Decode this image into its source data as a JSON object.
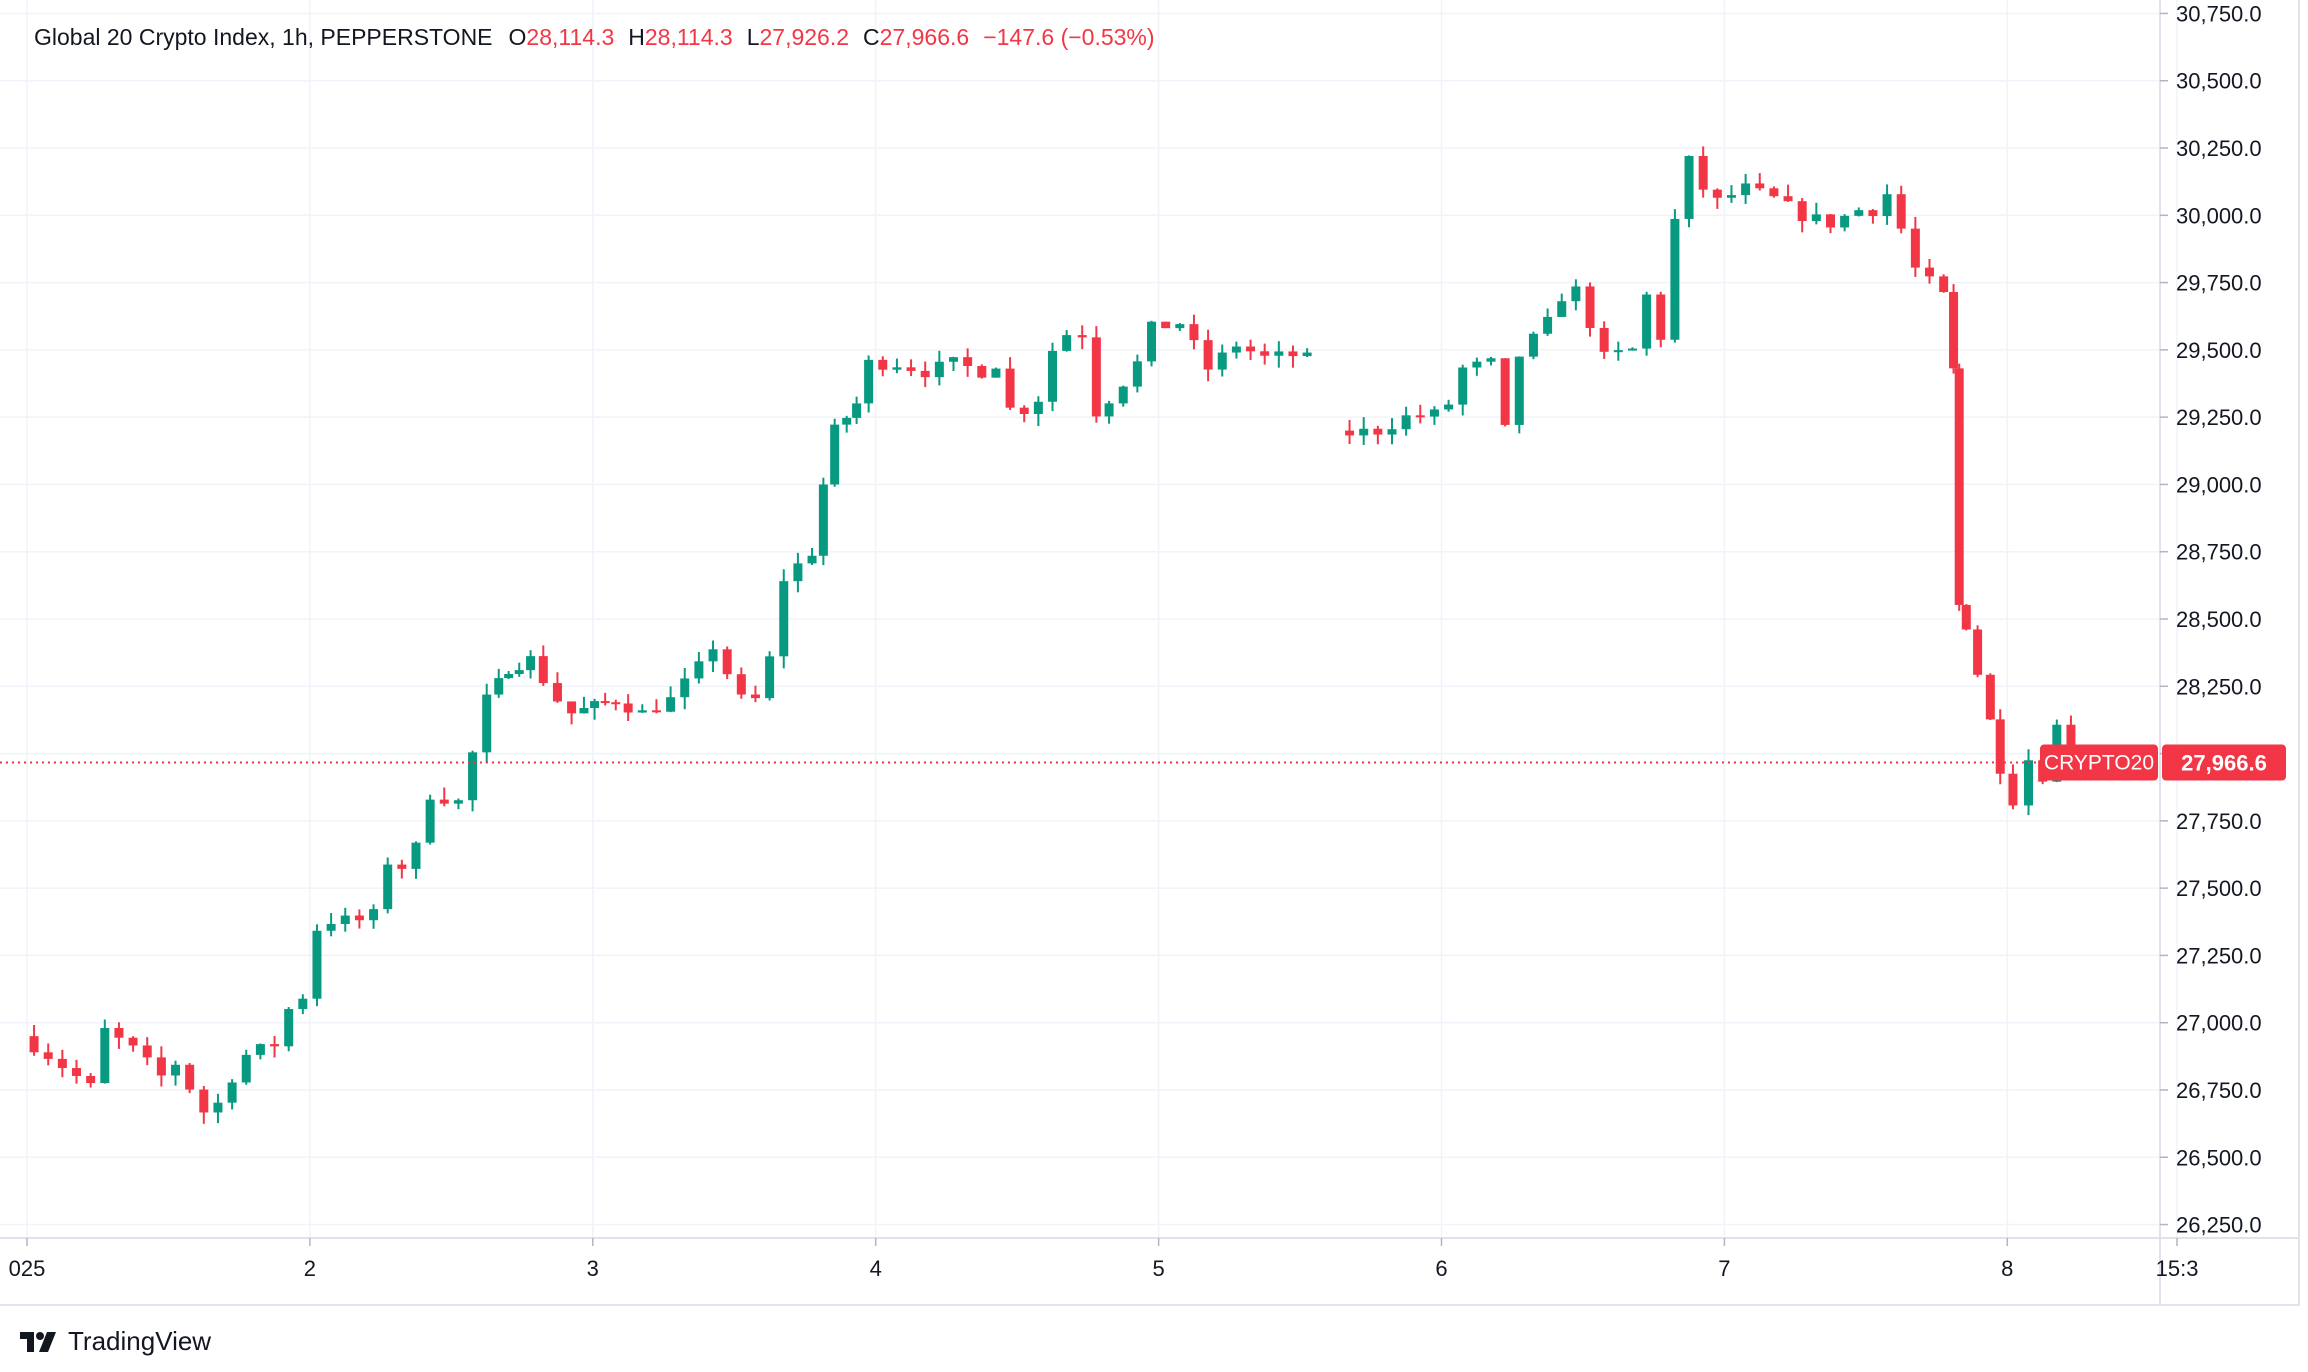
{
  "legend": {
    "symbol": "Global 20 Crypto Index, 1h, PEPPERSTONE",
    "open_key": "O",
    "open": "28,114.3",
    "high_key": "H",
    "high": "28,114.3",
    "low_key": "L",
    "low": "27,926.2",
    "close_key": "C",
    "close": "27,966.6",
    "change": "−147.6 (−0.53%)"
  },
  "brand": {
    "name": "TradingView"
  },
  "colors": {
    "up": "#089981",
    "down": "#f23645",
    "grid": "#f0f3fa",
    "text": "#131722"
  },
  "chart_data": {
    "type": "candlestick",
    "ticker_label": "CRYPTO20",
    "last_price": 27966.6,
    "last_price_label": "27,966.6",
    "ylim": [
      26200,
      30800
    ],
    "y_ticks": [
      26250,
      26500,
      26750,
      27000,
      27250,
      27500,
      27750,
      28000,
      28250,
      28500,
      28750,
      29000,
      29250,
      29500,
      29750,
      30000,
      30250,
      30500,
      30750
    ],
    "y_tick_labels": [
      "26,250.0",
      "26,500.0",
      "26,750.0",
      "27,000.0",
      "27,250.0",
      "27,500.0",
      "27,750.0",
      "28,000.0",
      "28,250.0",
      "28,500.0",
      "28,750.0",
      "29,000.0",
      "29,250.0",
      "29,500.0",
      "29,750.0",
      "30,000.0",
      "30,250.0",
      "30,500.0",
      "30,750.0"
    ],
    "x_ticks": [
      {
        "label": "025",
        "day": 1.0
      },
      {
        "label": "2",
        "day": 2.0
      },
      {
        "label": "3",
        "day": 3.0
      },
      {
        "label": "4",
        "day": 4.0
      },
      {
        "label": "5",
        "day": 5.0
      },
      {
        "label": "6",
        "day": 6.0
      },
      {
        "label": "7",
        "day": 7.0
      },
      {
        "label": "8",
        "day": 8.0
      },
      {
        "label": "15:3",
        "day": 8.6
      }
    ],
    "anchors": [
      [
        1.0,
        26950
      ],
      [
        1.1,
        26880
      ],
      [
        1.2,
        26800
      ],
      [
        1.25,
        26760
      ],
      [
        1.3,
        26970
      ],
      [
        1.4,
        26900
      ],
      [
        1.5,
        26800
      ],
      [
        1.55,
        26850
      ],
      [
        1.6,
        26760
      ],
      [
        1.65,
        26670
      ],
      [
        1.7,
        26700
      ],
      [
        1.75,
        26800
      ],
      [
        1.8,
        26880
      ],
      [
        1.9,
        26920
      ],
      [
        1.95,
        27050
      ],
      [
        2.0,
        27100
      ],
      [
        2.05,
        27350
      ],
      [
        2.1,
        27380
      ],
      [
        2.2,
        27380
      ],
      [
        2.25,
        27400
      ],
      [
        2.3,
        27600
      ],
      [
        2.35,
        27580
      ],
      [
        2.4,
        27650
      ],
      [
        2.45,
        27850
      ],
      [
        2.55,
        27820
      ],
      [
        2.6,
        28000
      ],
      [
        2.65,
        28200
      ],
      [
        2.72,
        28320
      ],
      [
        2.8,
        28350
      ],
      [
        2.9,
        28200
      ],
      [
        2.95,
        28150
      ],
      [
        3.1,
        28200
      ],
      [
        3.2,
        28150
      ],
      [
        3.3,
        28200
      ],
      [
        3.4,
        28320
      ],
      [
        3.45,
        28400
      ],
      [
        3.55,
        28200
      ],
      [
        3.6,
        28200
      ],
      [
        3.65,
        28350
      ],
      [
        3.7,
        28650
      ],
      [
        3.8,
        28750
      ],
      [
        3.83,
        29000
      ],
      [
        3.88,
        29200
      ],
      [
        3.95,
        29300
      ],
      [
        4.0,
        29450
      ],
      [
        4.1,
        29450
      ],
      [
        4.2,
        29420
      ],
      [
        4.3,
        29450
      ],
      [
        4.4,
        29420
      ],
      [
        4.45,
        29450
      ],
      [
        4.5,
        29280
      ],
      [
        4.55,
        29280
      ],
      [
        4.6,
        29320
      ],
      [
        4.65,
        29500
      ],
      [
        4.7,
        29560
      ],
      [
        4.76,
        29560
      ],
      [
        4.8,
        29270
      ],
      [
        4.85,
        29320
      ],
      [
        4.9,
        29380
      ],
      [
        4.95,
        29450
      ],
      [
        5.0,
        29580
      ],
      [
        5.1,
        29600
      ],
      [
        5.2,
        29430
      ],
      [
        5.3,
        29520
      ],
      [
        5.4,
        29470
      ],
      [
        5.5,
        29480
      ],
      [
        5.55,
        29490
      ],
      null,
      [
        5.65,
        29200
      ],
      [
        5.7,
        29190
      ],
      [
        5.8,
        29200
      ],
      [
        5.9,
        29250
      ],
      [
        6.0,
        29260
      ],
      [
        6.05,
        29300
      ],
      [
        6.1,
        29430
      ],
      [
        6.2,
        29450
      ],
      [
        6.25,
        29200
      ],
      [
        6.3,
        29480
      ],
      [
        6.4,
        29600
      ],
      [
        6.45,
        29700
      ],
      [
        6.5,
        29720
      ],
      [
        6.55,
        29600
      ],
      [
        6.6,
        29470
      ],
      [
        6.7,
        29500
      ],
      [
        6.75,
        29700
      ],
      [
        6.8,
        29550
      ],
      [
        6.85,
        29980
      ],
      [
        6.9,
        30200
      ],
      [
        6.95,
        30100
      ],
      [
        7.0,
        30050
      ],
      [
        7.1,
        30100
      ],
      [
        7.2,
        30060
      ],
      [
        7.3,
        30000
      ],
      [
        7.4,
        29970
      ],
      [
        7.5,
        30020
      ],
      [
        7.55,
        30020
      ],
      [
        7.6,
        30080
      ],
      [
        7.65,
        29950
      ],
      [
        7.7,
        29800
      ],
      [
        7.75,
        29750
      ],
      [
        7.8,
        29700
      ],
      [
        7.82,
        29420
      ],
      [
        7.84,
        28550
      ],
      [
        7.87,
        28480
      ],
      [
        7.92,
        28300
      ],
      [
        7.96,
        28120
      ],
      [
        7.99,
        27950
      ],
      [
        8.05,
        27830
      ],
      [
        8.1,
        27980
      ],
      [
        8.15,
        27920
      ],
      [
        8.2,
        28100
      ],
      [
        8.25,
        27966.6
      ]
    ]
  }
}
